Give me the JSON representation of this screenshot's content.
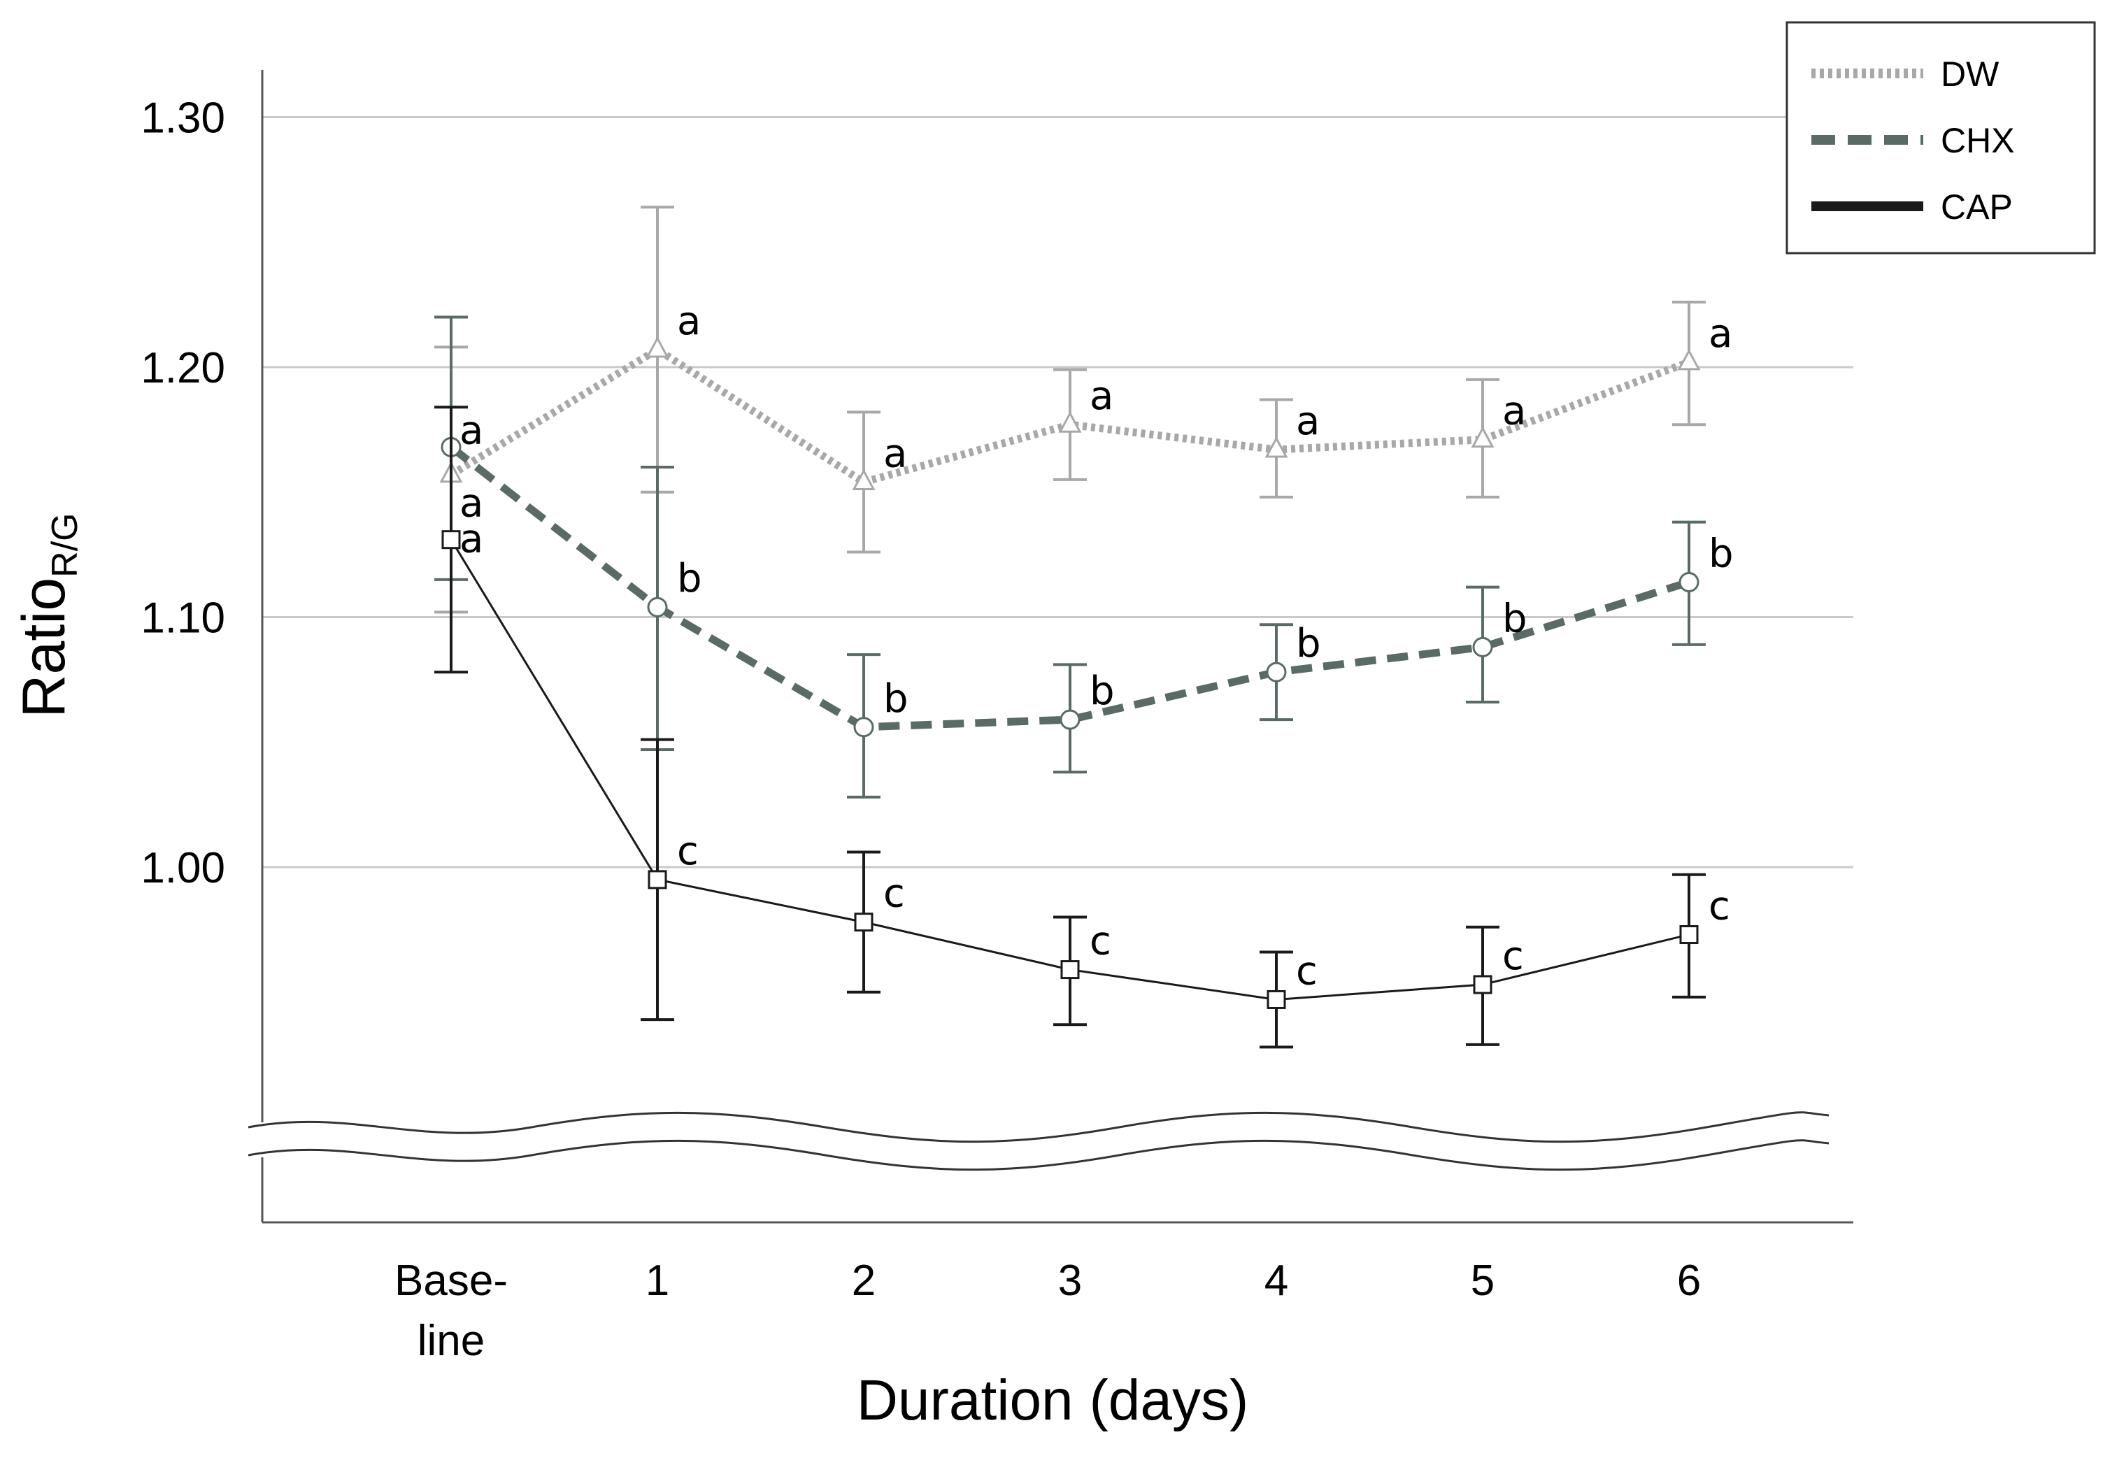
{
  "chart_data": {
    "type": "line",
    "xlabel": "Duration (days)",
    "ylabel": {
      "main": "Ratio",
      "sub": "R/G"
    },
    "categories": [
      {
        "line1": "Base-",
        "line2": "line"
      },
      {
        "line1": "1",
        "line2": ""
      },
      {
        "line1": "2",
        "line2": ""
      },
      {
        "line1": "3",
        "line2": ""
      },
      {
        "line1": "4",
        "line2": ""
      },
      {
        "line1": "5",
        "line2": ""
      },
      {
        "line1": "6",
        "line2": ""
      }
    ],
    "yticks": [
      "1.30",
      "1.20",
      "1.10",
      "1.00"
    ],
    "ylim": [
      0.88,
      1.32
    ],
    "y_axis_break": true,
    "grid": true,
    "legend_position": "top-right",
    "series": [
      {
        "name": "DW",
        "style": "dotted",
        "marker": "triangle",
        "color": "#a8a8a8",
        "values": [
          1.157,
          1.207,
          1.154,
          1.177,
          1.167,
          1.171,
          1.202
        ],
        "err_high": [
          1.208,
          1.264,
          1.182,
          1.199,
          1.187,
          1.195,
          1.226
        ],
        "err_low": [
          1.102,
          1.15,
          1.126,
          1.155,
          1.148,
          1.148,
          1.177
        ],
        "letters": [
          "a",
          "a",
          "a",
          "a",
          "a",
          "a",
          "a"
        ]
      },
      {
        "name": "CHX",
        "style": "dashed",
        "marker": "circle",
        "color": "#5a6b66",
        "values": [
          1.168,
          1.104,
          1.056,
          1.059,
          1.078,
          1.088,
          1.114
        ],
        "err_high": [
          1.22,
          1.16,
          1.085,
          1.081,
          1.097,
          1.112,
          1.138
        ],
        "err_low": [
          1.115,
          1.047,
          1.028,
          1.038,
          1.059,
          1.066,
          1.089
        ],
        "letters": [
          "a",
          "b",
          "b",
          "b",
          "b",
          "b",
          "b"
        ]
      },
      {
        "name": "CAP",
        "style": "solid",
        "marker": "square",
        "color": "#1a1a1a",
        "values": [
          1.131,
          0.995,
          0.978,
          0.959,
          0.947,
          0.953,
          0.973
        ],
        "err_high": [
          1.184,
          1.051,
          1.006,
          0.98,
          0.966,
          0.976,
          0.997
        ],
        "err_low": [
          1.078,
          0.939,
          0.95,
          0.937,
          0.928,
          0.929,
          0.948
        ],
        "letters": [
          "a",
          "c",
          "c",
          "c",
          "c",
          "c",
          "c"
        ]
      }
    ]
  }
}
